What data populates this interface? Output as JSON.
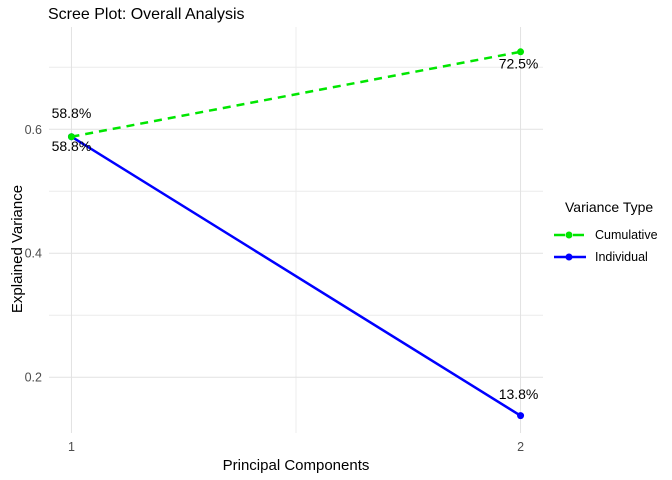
{
  "chart_data": {
    "type": "line",
    "title": "Scree Plot: Overall Analysis",
    "xlabel": "Principal Components",
    "ylabel": "Explained Variance",
    "x": [
      1,
      2
    ],
    "xtick_labels": [
      "1",
      "2"
    ],
    "xticks": [
      1,
      2
    ],
    "xticks_minor": [
      1.5
    ],
    "ytick_labels": [
      "0.2",
      "0.4",
      "0.6"
    ],
    "yticks": [
      0.2,
      0.4,
      0.6
    ],
    "yticks_minor": [
      0.3,
      0.5,
      0.7
    ],
    "xlim": [
      0.95,
      2.05
    ],
    "ylim": [
      0.11,
      0.765
    ],
    "grid": true,
    "background": "#ffffff",
    "grid_major_color": "#e2e2e2",
    "grid_minor_color": "#ececec",
    "tick_text_color": "#4d4d4d",
    "annotation_text_color": "#000000",
    "legend": {
      "title": "Variance Type",
      "position": "right",
      "entries": [
        "Cumulative",
        "Individual"
      ]
    },
    "series": [
      {
        "name": "Individual",
        "x": [
          1,
          2
        ],
        "values": [
          0.588,
          0.138
        ],
        "color": "#0000ff",
        "style": "solid",
        "point_labels": [
          "58.8%",
          "13.8%"
        ],
        "label_offsets": [
          {
            "dx": 0,
            "dy": 10
          },
          {
            "dx": -2,
            "dy": -21
          }
        ]
      },
      {
        "name": "Cumulative",
        "x": [
          1,
          2
        ],
        "values": [
          0.588,
          0.725
        ],
        "color": "#00e600",
        "style": "dashed",
        "point_labels": [
          "58.8%",
          "72.5%"
        ],
        "label_offsets": [
          {
            "dx": 0,
            "dy": -23
          },
          {
            "dx": -2,
            "dy": 12
          }
        ]
      }
    ],
    "legend_order": [
      "Cumulative",
      "Individual"
    ]
  }
}
